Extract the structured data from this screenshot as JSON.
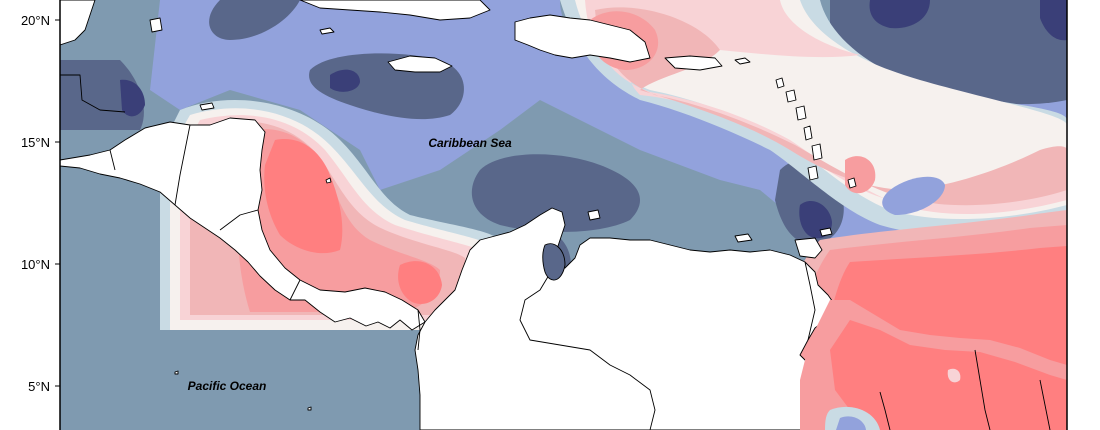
{
  "map": {
    "latitude_ticks": [
      "20°N",
      "15°N",
      "10°N",
      "5°N"
    ],
    "labels": {
      "caribbean_sea": "Caribbean Sea",
      "pacific_ocean": "Pacific Ocean"
    },
    "colors": {
      "very_dark_blue": "#3a3f78",
      "dark_slate": "#59678a",
      "slate": "#7f9ab0",
      "periwinkle": "#92a2dc",
      "pale_blue": "#c9dbe4",
      "cream": "#f6f1ee",
      "light_pink": "#f8d3d6",
      "pink": "#f1b6b7",
      "salmon": "#f79d9f",
      "coral": "#ff7f80",
      "land": "#ffffff",
      "coast_line": "#000000"
    }
  }
}
